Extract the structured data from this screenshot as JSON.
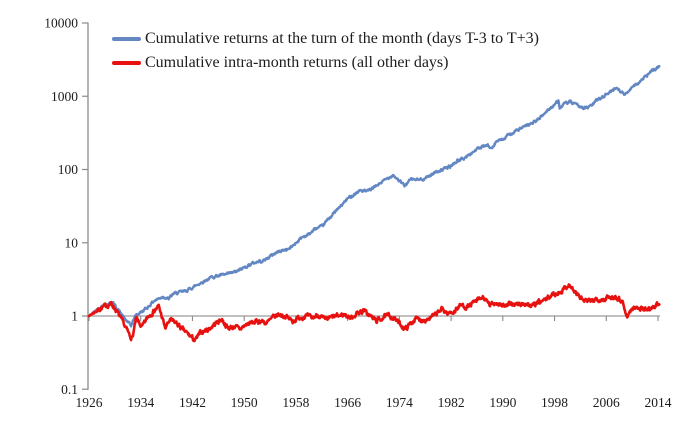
{
  "chart_data": {
    "type": "line",
    "title": "",
    "xlabel": "",
    "ylabel": "",
    "x_axis": {
      "range": [
        1926,
        2014.4
      ],
      "ticks": [
        1926,
        1934,
        1942,
        1950,
        1958,
        1966,
        1974,
        1982,
        1990,
        1998,
        2006,
        2014
      ],
      "tick_labels": [
        "1926",
        "1934",
        "1942",
        "1950",
        "1958",
        "1966",
        "1974",
        "1982",
        "1990",
        "1998",
        "2006",
        "2014"
      ]
    },
    "y_axis": {
      "scale": "log",
      "range": [
        0.1,
        10000
      ],
      "ticks": [
        10000,
        1000,
        100,
        10,
        1,
        0.1
      ],
      "tick_labels": [
        "10000",
        "1000",
        "100",
        "10",
        "1",
        "0.1"
      ]
    },
    "baseline": {
      "value": 1,
      "color": "#9b9b9b"
    },
    "axis_color": "#8a8a8a",
    "legend_position": "top-left",
    "series": [
      {
        "name": "Cumulative returns at the turn of the month (days T-3 to T+3)",
        "color": "#6287c3",
        "points": [
          [
            1926,
            1.0
          ],
          [
            1927,
            1.18
          ],
          [
            1928,
            1.38
          ],
          [
            1929.7,
            1.52
          ],
          [
            1930.5,
            1.22
          ],
          [
            1931.5,
            0.92
          ],
          [
            1932.5,
            0.74
          ],
          [
            1933.2,
            1.02
          ],
          [
            1934,
            1.12
          ],
          [
            1935,
            1.3
          ],
          [
            1936,
            1.6
          ],
          [
            1937.5,
            1.85
          ],
          [
            1938.3,
            1.7
          ],
          [
            1939,
            2.0
          ],
          [
            1940,
            2.1
          ],
          [
            1941,
            2.2
          ],
          [
            1942,
            2.45
          ],
          [
            1943,
            2.75
          ],
          [
            1944,
            3.05
          ],
          [
            1945,
            3.4
          ],
          [
            1946,
            3.55
          ],
          [
            1947,
            3.65
          ],
          [
            1948,
            3.85
          ],
          [
            1949,
            4.1
          ],
          [
            1950,
            4.6
          ],
          [
            1951,
            5.1
          ],
          [
            1952,
            5.5
          ],
          [
            1953,
            5.7
          ],
          [
            1954,
            6.5
          ],
          [
            1955,
            7.4
          ],
          [
            1956,
            7.9
          ],
          [
            1957,
            8.3
          ],
          [
            1958,
            10.0
          ],
          [
            1959,
            12.0
          ],
          [
            1960,
            13.0
          ],
          [
            1961,
            15.5
          ],
          [
            1962,
            16.5
          ],
          [
            1963,
            21.0
          ],
          [
            1964,
            26.0
          ],
          [
            1965,
            32.0
          ],
          [
            1966,
            40.0
          ],
          [
            1967,
            46.0
          ],
          [
            1968,
            52.0
          ],
          [
            1969,
            50.0
          ],
          [
            1970,
            56.0
          ],
          [
            1971,
            65.0
          ],
          [
            1972,
            74.0
          ],
          [
            1973,
            85.0
          ],
          [
            1974.8,
            60.0
          ],
          [
            1975.5,
            70.0
          ],
          [
            1976,
            74.0
          ],
          [
            1977,
            72.0
          ],
          [
            1978,
            76.0
          ],
          [
            1979,
            86.0
          ],
          [
            1980,
            96.0
          ],
          [
            1981,
            102
          ],
          [
            1982,
            112
          ],
          [
            1983,
            132
          ],
          [
            1984,
            142
          ],
          [
            1985,
            163
          ],
          [
            1986,
            190
          ],
          [
            1987.7,
            215
          ],
          [
            1987.9,
            195
          ],
          [
            1988.5,
            210
          ],
          [
            1989,
            243
          ],
          [
            1990,
            255
          ],
          [
            1991,
            300
          ],
          [
            1992,
            335
          ],
          [
            1993,
            372
          ],
          [
            1994,
            405
          ],
          [
            1995,
            455
          ],
          [
            1996,
            530
          ],
          [
            1997,
            650
          ],
          [
            1998.6,
            860
          ],
          [
            1998.8,
            700
          ],
          [
            1999.5,
            780
          ],
          [
            2000.3,
            840
          ],
          [
            2001.3,
            760
          ],
          [
            2002.7,
            690
          ],
          [
            2003.5,
            720
          ],
          [
            2004.5,
            880
          ],
          [
            2005.5,
            1000
          ],
          [
            2006.5,
            1130
          ],
          [
            2007.6,
            1330
          ],
          [
            2008.8,
            1050
          ],
          [
            2009.3,
            1120
          ],
          [
            2010,
            1380
          ],
          [
            2011,
            1520
          ],
          [
            2012,
            1820
          ],
          [
            2013,
            2200
          ],
          [
            2014.2,
            2550
          ]
        ]
      },
      {
        "name": "Cumulative intra-month returns (all other days)",
        "color": "#e71210",
        "points": [
          [
            1926,
            1.0
          ],
          [
            1927,
            1.15
          ],
          [
            1928,
            1.3
          ],
          [
            1929.5,
            1.48
          ],
          [
            1930.3,
            1.15
          ],
          [
            1931.3,
            0.8
          ],
          [
            1932.3,
            0.54
          ],
          [
            1932.7,
            0.5
          ],
          [
            1933.3,
            0.92
          ],
          [
            1934.2,
            0.7
          ],
          [
            1935.2,
            1.0
          ],
          [
            1936.8,
            1.35
          ],
          [
            1937.8,
            0.68
          ],
          [
            1938.5,
            0.88
          ],
          [
            1939.5,
            0.8
          ],
          [
            1940.5,
            0.65
          ],
          [
            1941.5,
            0.55
          ],
          [
            1942.4,
            0.46
          ],
          [
            1943.3,
            0.6
          ],
          [
            1944.5,
            0.66
          ],
          [
            1945.5,
            0.78
          ],
          [
            1946.5,
            0.91
          ],
          [
            1947.5,
            0.68
          ],
          [
            1948.5,
            0.72
          ],
          [
            1949.3,
            0.66
          ],
          [
            1950.5,
            0.78
          ],
          [
            1951.5,
            0.82
          ],
          [
            1952.5,
            0.86
          ],
          [
            1953.5,
            0.8
          ],
          [
            1954.5,
            0.96
          ],
          [
            1955.4,
            1.05
          ],
          [
            1956.5,
            0.98
          ],
          [
            1957.5,
            0.85
          ],
          [
            1958.5,
            0.95
          ],
          [
            1959.5,
            1.0
          ],
          [
            1960.5,
            0.94
          ],
          [
            1961.5,
            1.04
          ],
          [
            1962.5,
            0.88
          ],
          [
            1963.5,
            0.96
          ],
          [
            1964.5,
            1.0
          ],
          [
            1965.5,
            1.05
          ],
          [
            1966.5,
            0.94
          ],
          [
            1967.5,
            1.1
          ],
          [
            1968.5,
            1.18
          ],
          [
            1969.5,
            1.0
          ],
          [
            1970.5,
            0.86
          ],
          [
            1971.5,
            0.96
          ],
          [
            1972.5,
            1.02
          ],
          [
            1973.5,
            0.88
          ],
          [
            1974.9,
            0.66
          ],
          [
            1975.8,
            0.8
          ],
          [
            1976.5,
            0.92
          ],
          [
            1977.5,
            0.88
          ],
          [
            1978.5,
            0.92
          ],
          [
            1979.5,
            1.02
          ],
          [
            1980.6,
            1.25
          ],
          [
            1981.5,
            1.08
          ],
          [
            1982.5,
            1.16
          ],
          [
            1983.5,
            1.42
          ],
          [
            1984.5,
            1.32
          ],
          [
            1985.5,
            1.52
          ],
          [
            1987.0,
            1.8
          ],
          [
            1987.9,
            1.4
          ],
          [
            1989,
            1.52
          ],
          [
            1990.5,
            1.36
          ],
          [
            1991.5,
            1.48
          ],
          [
            1992.5,
            1.42
          ],
          [
            1993.5,
            1.48
          ],
          [
            1994.5,
            1.36
          ],
          [
            1995.5,
            1.52
          ],
          [
            1996.5,
            1.64
          ],
          [
            1997.5,
            1.92
          ],
          [
            1998.5,
            2.05
          ],
          [
            1999.5,
            2.35
          ],
          [
            2000.2,
            2.7
          ],
          [
            2001.3,
            2.05
          ],
          [
            2002.5,
            1.62
          ],
          [
            2003.5,
            1.58
          ],
          [
            2004.5,
            1.72
          ],
          [
            2005.5,
            1.7
          ],
          [
            2006.5,
            1.78
          ],
          [
            2007.5,
            1.86
          ],
          [
            2008.6,
            1.55
          ],
          [
            2009.1,
            0.97
          ],
          [
            2010,
            1.25
          ],
          [
            2011,
            1.32
          ],
          [
            2012,
            1.22
          ],
          [
            2013,
            1.3
          ],
          [
            2014.2,
            1.45
          ]
        ]
      }
    ]
  }
}
